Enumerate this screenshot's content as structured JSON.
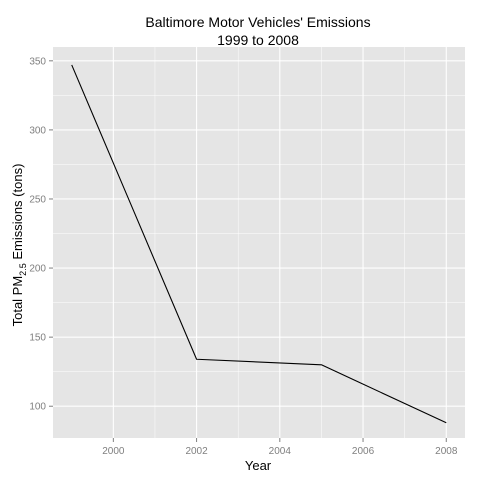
{
  "chart_data": {
    "type": "line",
    "title_line1": "Baltimore Motor Vehicles' Emissions",
    "title_line2": "1999 to 2008",
    "xlabel": "Year",
    "ylabel_prefix": "Total PM",
    "ylabel_subscript": "2.5",
    "ylabel_suffix": " Emissions (tons)",
    "x": [
      1999,
      2002,
      2005,
      2008
    ],
    "values": [
      347,
      134,
      130,
      88
    ],
    "xlim": [
      1998.55,
      2008.45
    ],
    "ylim": [
      77,
      360
    ],
    "x_ticks": [
      2000,
      2002,
      2004,
      2006,
      2008
    ],
    "x_tick_labels": [
      "2000",
      "2002",
      "2004",
      "2006",
      "2008"
    ],
    "y_ticks": [
      100,
      150,
      200,
      250,
      300,
      350
    ],
    "y_tick_labels": [
      "100",
      "150",
      "200",
      "250",
      "300",
      "350"
    ],
    "grid": true,
    "panel_color": "#e5e5e5",
    "grid_color": "#ffffff",
    "line_color": "#000000",
    "tick_label_color": "#7f7f7f"
  }
}
